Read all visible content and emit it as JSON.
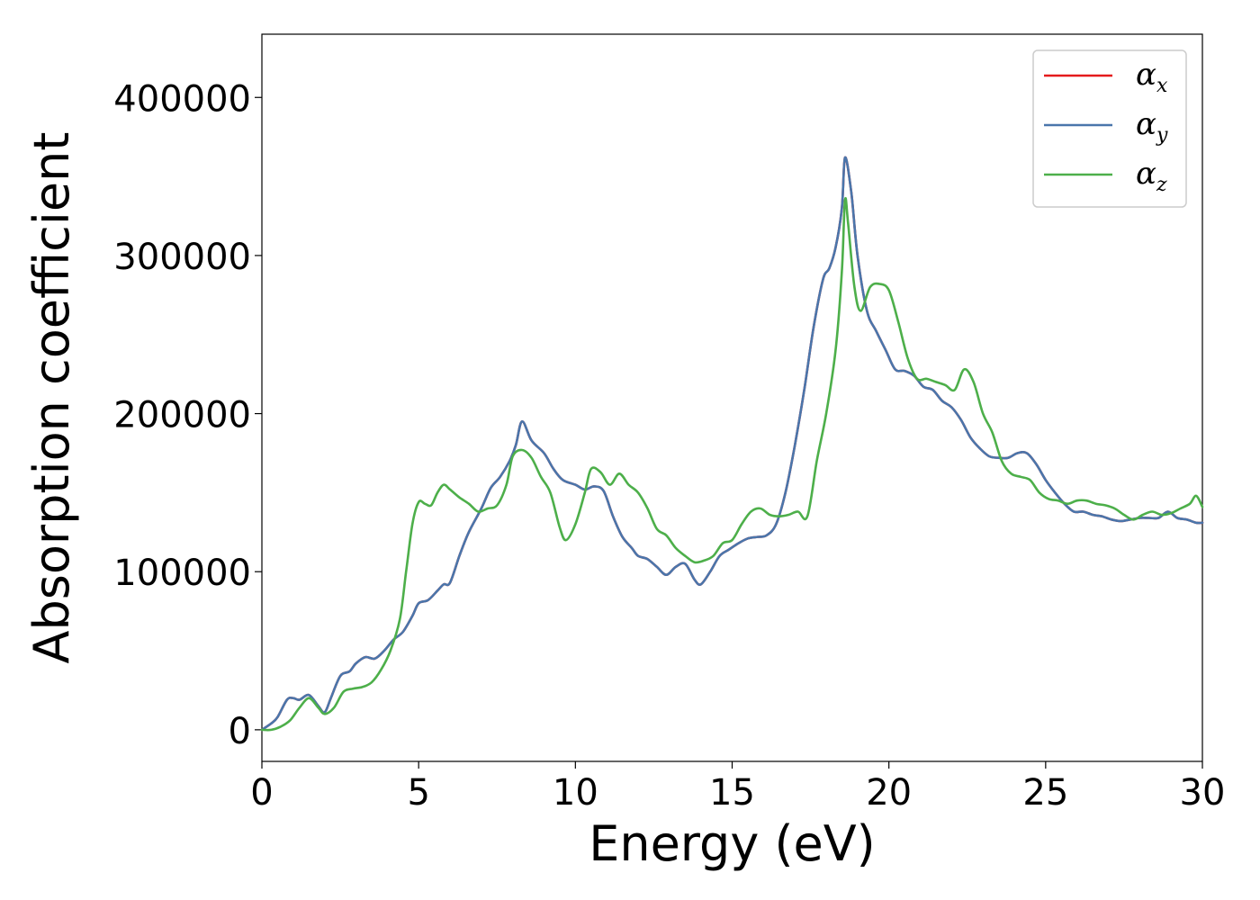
{
  "chart_data": {
    "type": "line",
    "title": "",
    "xlabel": "Energy (eV)",
    "ylabel": "Absorption coefficient",
    "xlim": [
      0,
      30
    ],
    "ylim": [
      -20000,
      440000
    ],
    "xticks": [
      0,
      5,
      10,
      15,
      20,
      25,
      30
    ],
    "yticks": [
      0,
      100000,
      200000,
      300000,
      400000
    ],
    "xtick_labels": [
      "0",
      "5",
      "10",
      "15",
      "20",
      "25",
      "30"
    ],
    "ytick_labels": [
      "0",
      "100000",
      "200000",
      "300000",
      "400000"
    ],
    "grid": false,
    "legend_position": "top-right",
    "series": [
      {
        "name": "αx",
        "symbol": "α",
        "subscript": "x",
        "color": "#e41a1c",
        "x": [
          0,
          0.3,
          0.5,
          0.8,
          1.0,
          1.2,
          1.5,
          1.8,
          2.0,
          2.2,
          2.5,
          2.8,
          3.0,
          3.3,
          3.6,
          3.9,
          4.2,
          4.5,
          4.8,
          5.0,
          5.3,
          5.6,
          5.8,
          6.0,
          6.3,
          6.6,
          7.0,
          7.3,
          7.6,
          7.9,
          8.1,
          8.3,
          8.6,
          9.0,
          9.3,
          9.6,
          10.0,
          10.3,
          10.6,
          10.9,
          11.2,
          11.5,
          11.8,
          12.0,
          12.3,
          12.6,
          12.9,
          13.2,
          13.5,
          13.8,
          14.0,
          14.3,
          14.6,
          14.9,
          15.2,
          15.5,
          15.8,
          16.1,
          16.4,
          16.7,
          17.0,
          17.3,
          17.6,
          17.9,
          18.1,
          18.3,
          18.5,
          18.6,
          18.8,
          19.0,
          19.3,
          19.6,
          19.9,
          20.2,
          20.5,
          20.8,
          21.1,
          21.4,
          21.7,
          22.0,
          22.3,
          22.6,
          22.9,
          23.2,
          23.5,
          23.8,
          24.1,
          24.4,
          24.7,
          25.0,
          25.3,
          25.6,
          25.9,
          26.2,
          26.5,
          26.8,
          27.1,
          27.4,
          27.7,
          28.0,
          28.3,
          28.6,
          28.9,
          29.2,
          29.5,
          29.8,
          30.0
        ],
        "y": [
          0,
          4000,
          8000,
          19000,
          20000,
          19000,
          22000,
          15000,
          11000,
          20000,
          34000,
          37000,
          42000,
          46000,
          45000,
          50000,
          57000,
          62000,
          72000,
          80000,
          82000,
          88000,
          92000,
          93000,
          110000,
          125000,
          140000,
          153000,
          160000,
          170000,
          180000,
          195000,
          183000,
          175000,
          165000,
          158000,
          155000,
          152000,
          154000,
          151000,
          135000,
          122000,
          115000,
          110000,
          108000,
          103000,
          98000,
          103000,
          105000,
          95000,
          92000,
          100000,
          110000,
          114000,
          118000,
          121000,
          122000,
          123000,
          130000,
          150000,
          180000,
          215000,
          255000,
          285000,
          292000,
          305000,
          330000,
          362000,
          340000,
          300000,
          265000,
          252000,
          240000,
          228000,
          227000,
          224000,
          217000,
          215000,
          208000,
          204000,
          196000,
          185000,
          178000,
          173000,
          172000,
          172000,
          175000,
          175000,
          168000,
          158000,
          150000,
          143000,
          138000,
          138000,
          136000,
          135000,
          133000,
          132000,
          133000,
          134000,
          134000,
          134000,
          138000,
          134000,
          133000,
          131000,
          131000
        ]
      },
      {
        "name": "αy",
        "symbol": "α",
        "subscript": "y",
        "color": "#4a76ab",
        "x": [
          0,
          0.3,
          0.5,
          0.8,
          1.0,
          1.2,
          1.5,
          1.8,
          2.0,
          2.2,
          2.5,
          2.8,
          3.0,
          3.3,
          3.6,
          3.9,
          4.2,
          4.5,
          4.8,
          5.0,
          5.3,
          5.6,
          5.8,
          6.0,
          6.3,
          6.6,
          7.0,
          7.3,
          7.6,
          7.9,
          8.1,
          8.3,
          8.6,
          9.0,
          9.3,
          9.6,
          10.0,
          10.3,
          10.6,
          10.9,
          11.2,
          11.5,
          11.8,
          12.0,
          12.3,
          12.6,
          12.9,
          13.2,
          13.5,
          13.8,
          14.0,
          14.3,
          14.6,
          14.9,
          15.2,
          15.5,
          15.8,
          16.1,
          16.4,
          16.7,
          17.0,
          17.3,
          17.6,
          17.9,
          18.1,
          18.3,
          18.5,
          18.6,
          18.8,
          19.0,
          19.3,
          19.6,
          19.9,
          20.2,
          20.5,
          20.8,
          21.1,
          21.4,
          21.7,
          22.0,
          22.3,
          22.6,
          22.9,
          23.2,
          23.5,
          23.8,
          24.1,
          24.4,
          24.7,
          25.0,
          25.3,
          25.6,
          25.9,
          26.2,
          26.5,
          26.8,
          27.1,
          27.4,
          27.7,
          28.0,
          28.3,
          28.6,
          28.9,
          29.2,
          29.5,
          29.8,
          30.0
        ],
        "y": [
          0,
          4000,
          8000,
          19000,
          20000,
          19000,
          22000,
          15000,
          11000,
          20000,
          34000,
          37000,
          42000,
          46000,
          45000,
          50000,
          57000,
          62000,
          72000,
          80000,
          82000,
          88000,
          92000,
          93000,
          110000,
          125000,
          140000,
          153000,
          160000,
          170000,
          180000,
          195000,
          183000,
          175000,
          165000,
          158000,
          155000,
          152000,
          154000,
          151000,
          135000,
          122000,
          115000,
          110000,
          108000,
          103000,
          98000,
          103000,
          105000,
          95000,
          92000,
          100000,
          110000,
          114000,
          118000,
          121000,
          122000,
          123000,
          130000,
          150000,
          180000,
          215000,
          255000,
          285000,
          292000,
          305000,
          330000,
          362000,
          340000,
          300000,
          265000,
          252000,
          240000,
          228000,
          227000,
          224000,
          217000,
          215000,
          208000,
          204000,
          196000,
          185000,
          178000,
          173000,
          172000,
          172000,
          175000,
          175000,
          168000,
          158000,
          150000,
          143000,
          138000,
          138000,
          136000,
          135000,
          133000,
          132000,
          133000,
          134000,
          134000,
          134000,
          138000,
          134000,
          133000,
          131000,
          131000
        ]
      },
      {
        "name": "αz",
        "symbol": "α",
        "subscript": "z",
        "color": "#4daf4a",
        "x": [
          0,
          0.3,
          0.6,
          0.9,
          1.2,
          1.5,
          1.8,
          2.0,
          2.3,
          2.6,
          2.9,
          3.2,
          3.5,
          3.8,
          4.1,
          4.4,
          4.6,
          4.8,
          5.0,
          5.2,
          5.4,
          5.6,
          5.8,
          6.0,
          6.3,
          6.6,
          6.9,
          7.2,
          7.5,
          7.8,
          8.0,
          8.3,
          8.6,
          8.9,
          9.2,
          9.5,
          9.7,
          10.0,
          10.3,
          10.5,
          10.8,
          11.1,
          11.4,
          11.7,
          12.0,
          12.3,
          12.6,
          12.9,
          13.2,
          13.5,
          13.8,
          14.1,
          14.4,
          14.7,
          15.0,
          15.3,
          15.6,
          15.9,
          16.2,
          16.5,
          16.8,
          17.1,
          17.4,
          17.7,
          18.0,
          18.3,
          18.5,
          18.6,
          18.7,
          18.9,
          19.1,
          19.4,
          19.7,
          20.0,
          20.3,
          20.6,
          20.9,
          21.2,
          21.5,
          21.8,
          22.1,
          22.4,
          22.7,
          23.0,
          23.3,
          23.6,
          23.9,
          24.2,
          24.5,
          24.8,
          25.1,
          25.4,
          25.7,
          26.0,
          26.3,
          26.6,
          26.9,
          27.2,
          27.5,
          27.8,
          28.1,
          28.4,
          28.7,
          29.0,
          29.3,
          29.6,
          29.8,
          30.0
        ],
        "y": [
          0,
          0,
          2000,
          6000,
          14000,
          20000,
          14000,
          10000,
          14000,
          24000,
          26000,
          27000,
          30000,
          38000,
          50000,
          70000,
          100000,
          130000,
          144000,
          143000,
          142000,
          150000,
          155000,
          152000,
          147000,
          143000,
          138000,
          140000,
          142000,
          155000,
          173000,
          177000,
          172000,
          160000,
          150000,
          128000,
          120000,
          130000,
          150000,
          165000,
          163000,
          155000,
          162000,
          155000,
          150000,
          140000,
          127000,
          123000,
          115000,
          110000,
          106000,
          107000,
          110000,
          118000,
          120000,
          130000,
          138000,
          140000,
          136000,
          135000,
          136000,
          138000,
          135000,
          170000,
          200000,
          240000,
          290000,
          335000,
          320000,
          280000,
          265000,
          280000,
          282000,
          278000,
          258000,
          235000,
          222000,
          222000,
          220000,
          218000,
          215000,
          228000,
          220000,
          200000,
          188000,
          170000,
          162000,
          160000,
          158000,
          150000,
          146000,
          145000,
          143000,
          145000,
          145000,
          143000,
          142000,
          140000,
          136000,
          133000,
          136000,
          138000,
          136000,
          137000,
          140000,
          143000,
          148000,
          141000
        ]
      }
    ]
  }
}
